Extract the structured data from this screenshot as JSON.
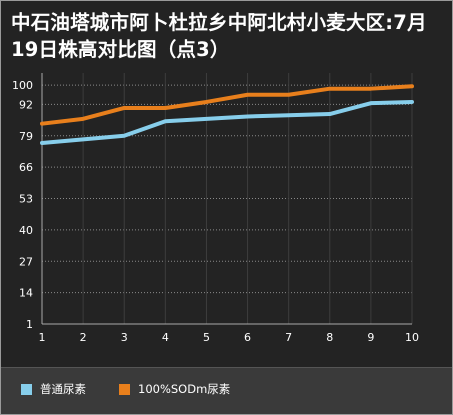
{
  "title": "中石油塔城市阿卜杜拉乡中阿北村小麦大区:7月19日株高对比图（点3）",
  "chart_data": {
    "type": "line",
    "title": "中石油塔城市阿卜杜拉乡中阿北村小麦大区:7月19日株高对比图（点3）",
    "xlabel": "",
    "ylabel": "",
    "x": [
      1,
      2,
      3,
      4,
      5,
      6,
      7,
      8,
      9,
      10
    ],
    "y_ticks": [
      1,
      14,
      27,
      40,
      53,
      66,
      79,
      92,
      100
    ],
    "ylim": [
      1,
      105
    ],
    "grid": true,
    "legend_position": "bottom-left",
    "series": [
      {
        "name": "普通尿素",
        "color": "#87ceeb",
        "values": [
          76,
          77.5,
          79,
          85,
          86,
          87,
          87.5,
          88,
          92.5,
          93
        ]
      },
      {
        "name": "100%SODm尿素",
        "color": "#e87f1c",
        "values": [
          84,
          86,
          90.5,
          90.5,
          93,
          96,
          96,
          98.5,
          98.5,
          99.5
        ]
      }
    ]
  }
}
